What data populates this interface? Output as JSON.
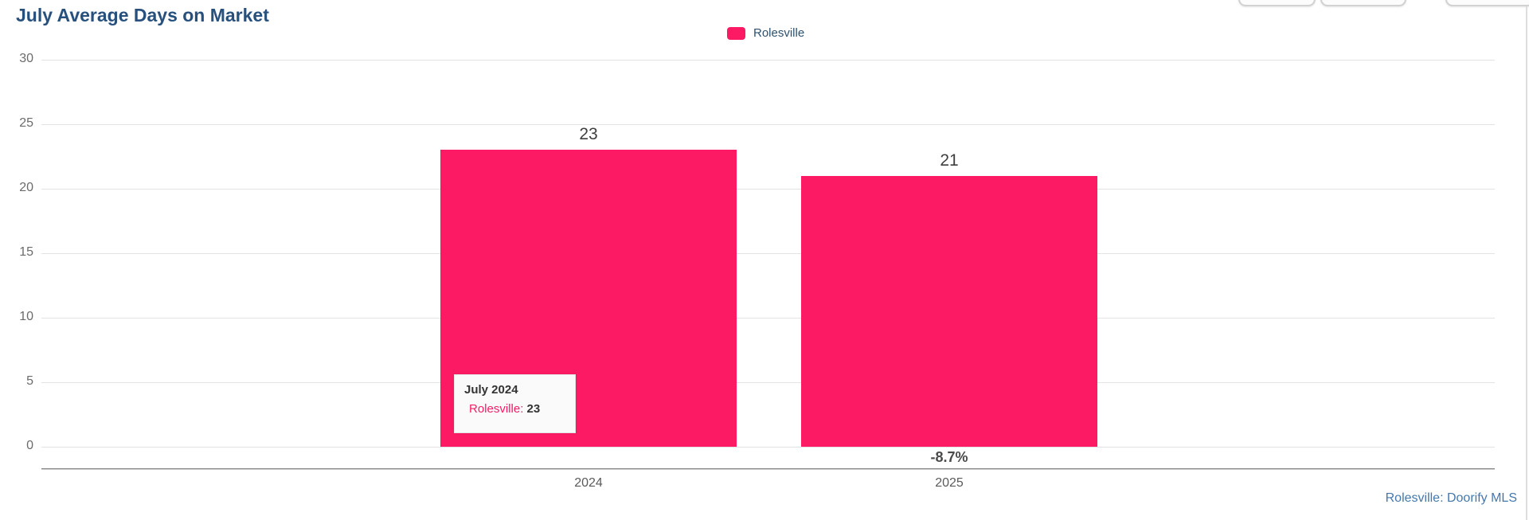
{
  "page": {
    "title": "July Average Days on Market",
    "source_attribution": "Rolesville: Doorify MLS"
  },
  "colors": {
    "series_pink": "#FB1A63",
    "title_navy": "#27507D",
    "source_blue": "#4478AC"
  },
  "legend": {
    "items": [
      {
        "label": "Rolesville",
        "color": "#FB1A63"
      }
    ]
  },
  "tooltip": {
    "title": "July 2024",
    "series_label": "Rolesville:",
    "value": "23"
  },
  "chart_data": {
    "type": "bar",
    "title": "July Average Days on Market",
    "categories": [
      "2024",
      "2025"
    ],
    "series": [
      {
        "name": "Rolesville",
        "color": "#FB1A63",
        "values": [
          23,
          21
        ]
      }
    ],
    "value_labels": [
      "23",
      "21"
    ],
    "change_annotation": {
      "text": "-8.7%",
      "category_index": 1
    },
    "xlabel": "",
    "ylabel": "",
    "ylim": [
      0,
      30
    ],
    "yticks": [
      0,
      5,
      10,
      15,
      20,
      25,
      30
    ],
    "grid": "horizontal",
    "legend_position": "top-center"
  }
}
